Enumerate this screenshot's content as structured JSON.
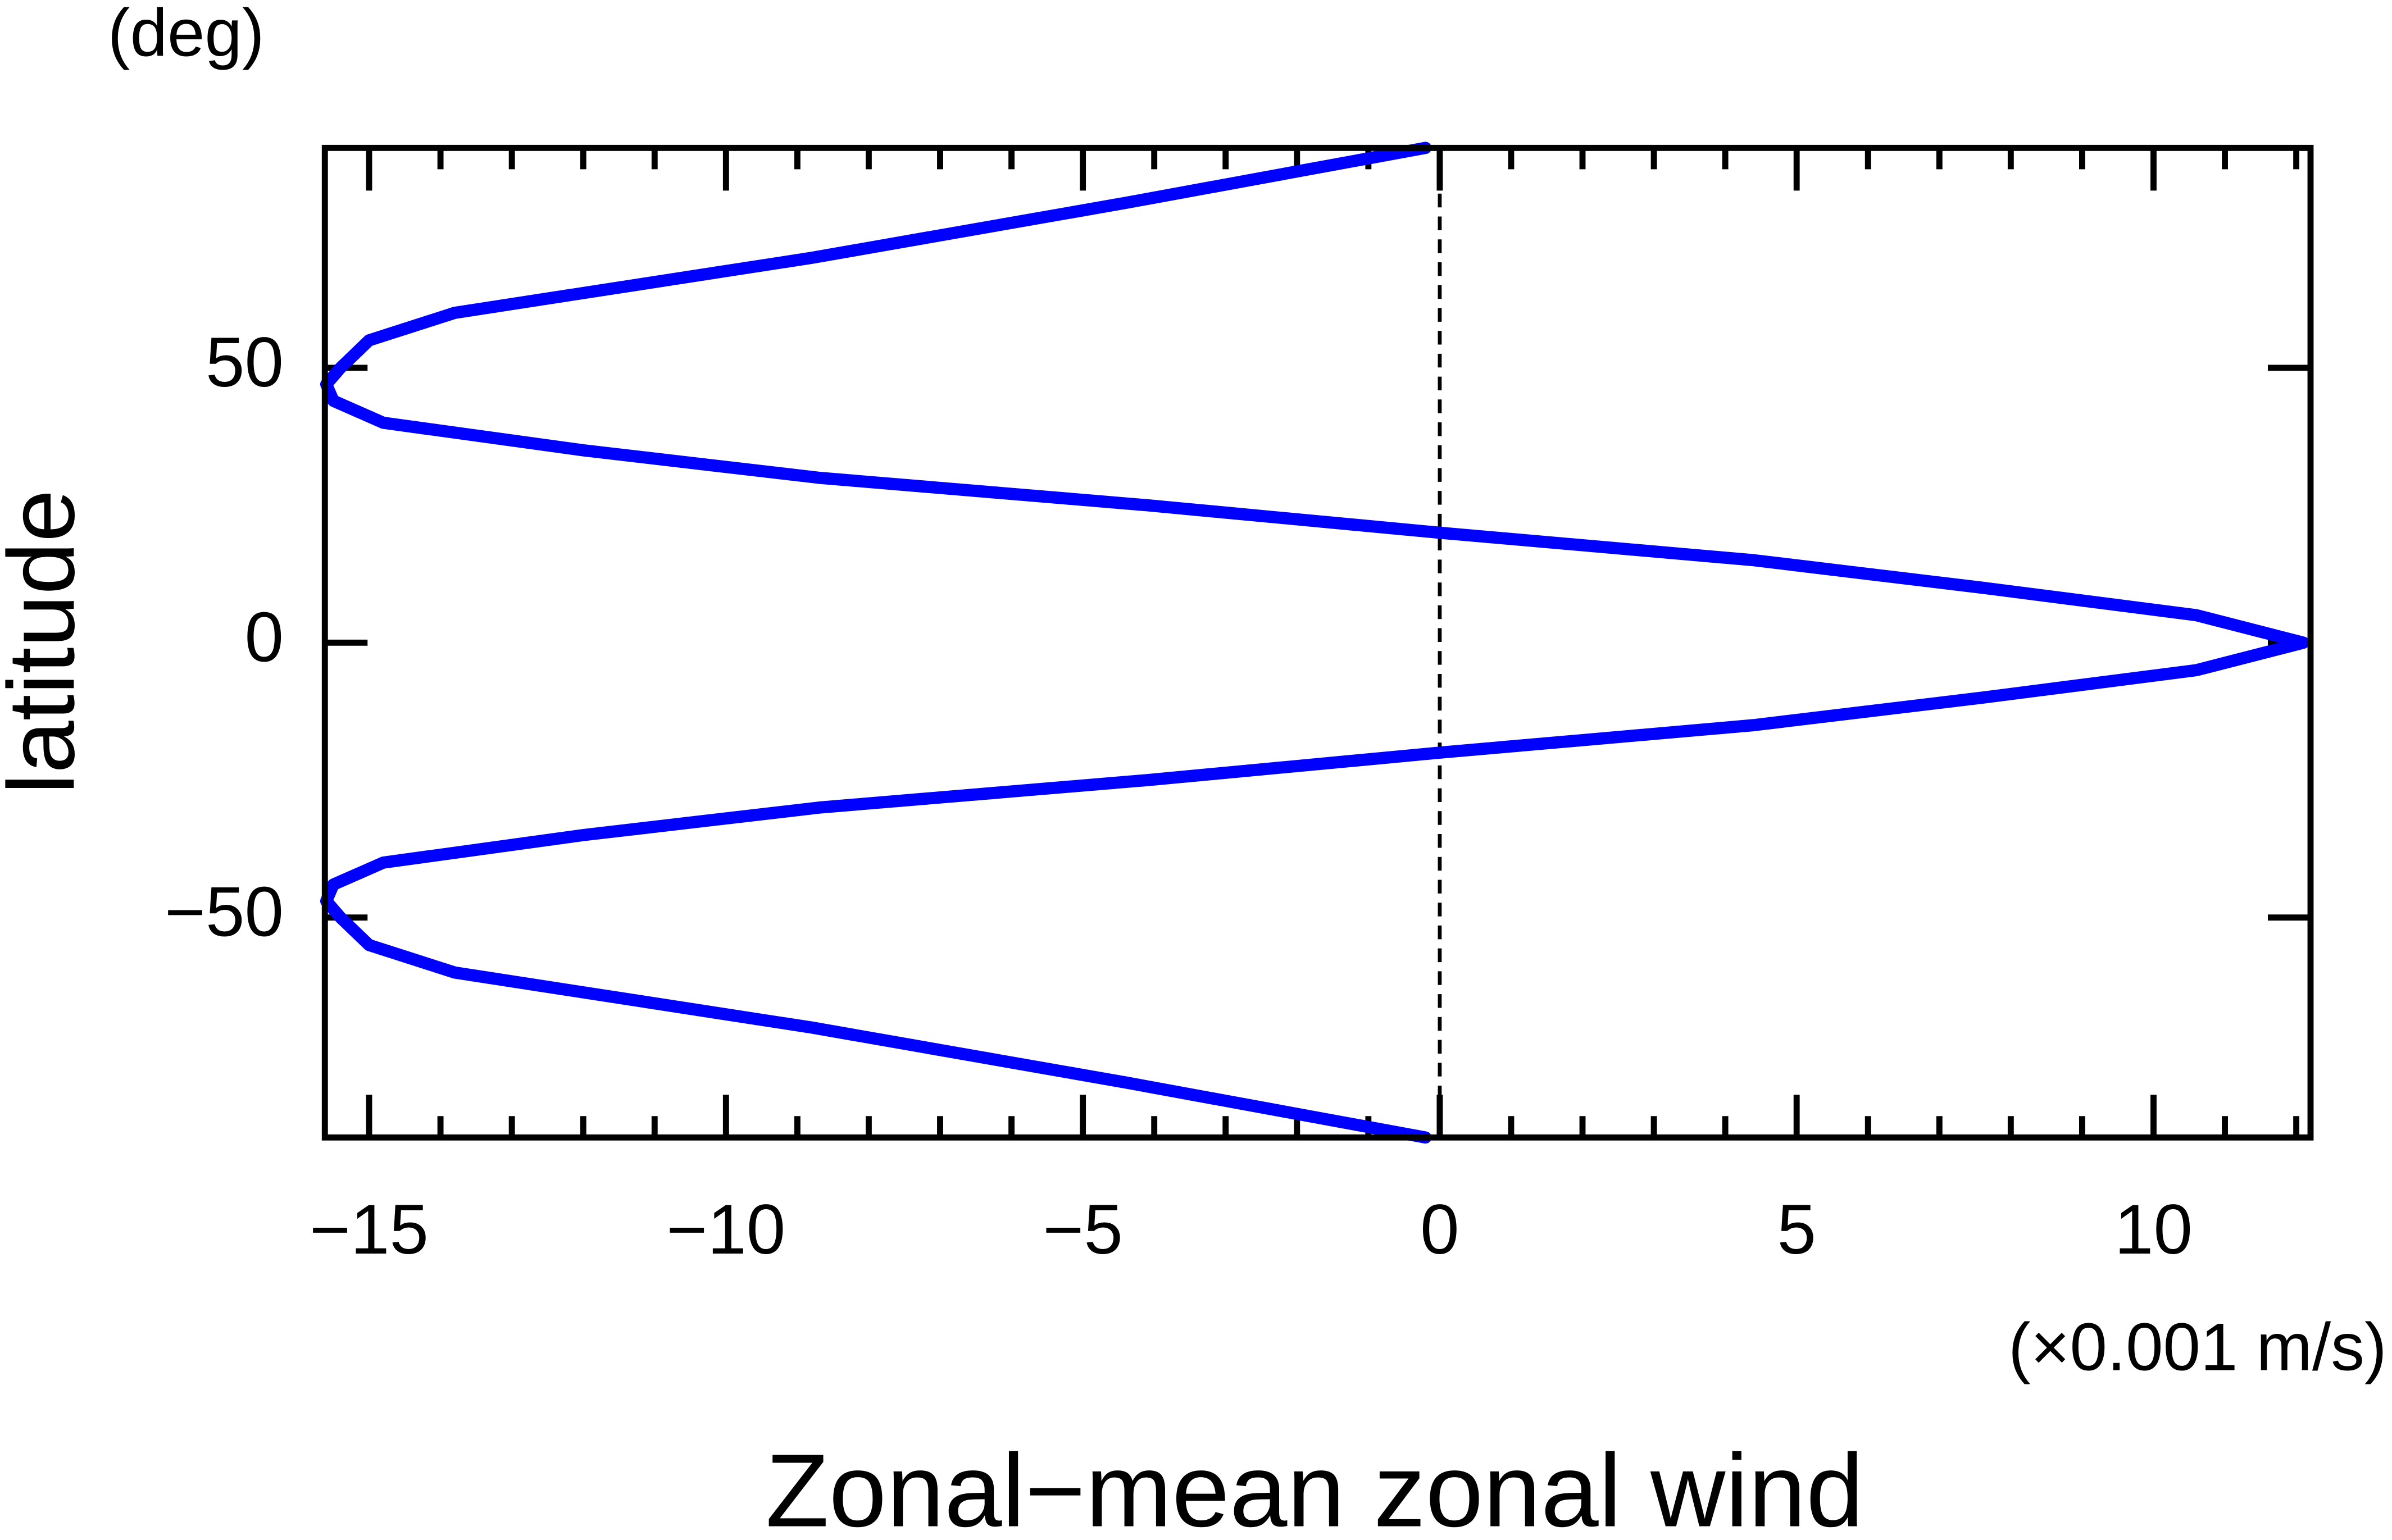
{
  "chart_data": {
    "type": "line",
    "y_unit": "(deg)",
    "y_label": "latitude",
    "x_unit": "(×0.001 m/s)",
    "x_label": "Zonal−mean zonal wind",
    "xlim": [
      -15.62,
      12.2
    ],
    "ylim": [
      -90,
      90
    ],
    "xticks": [
      {
        "value": -15,
        "label": "−15"
      },
      {
        "value": -10,
        "label": "−10"
      },
      {
        "value": -5,
        "label": "−5"
      },
      0,
      5,
      10
    ],
    "xminorticks": [
      -14,
      -13,
      -12,
      -11,
      -9,
      -8,
      -7,
      -6,
      -4,
      -3,
      -2,
      -1,
      1,
      2,
      3,
      4,
      6,
      7,
      8,
      9,
      11,
      12
    ],
    "yticks": [
      {
        "value": -50,
        "label": "−50"
      },
      0,
      50
    ],
    "zero_line": true,
    "y": [
      90,
      80,
      70,
      60,
      55,
      50,
      47,
      44,
      40,
      35,
      30,
      25,
      20,
      15,
      10,
      5,
      0,
      -5,
      -10,
      -15,
      -20,
      -25,
      -30,
      -35,
      -40,
      -44,
      -47,
      -50,
      -55,
      -60,
      -70,
      -80,
      -90
    ],
    "series": [
      {
        "color": "#0000ff",
        "values": [
          -0.2,
          -4.4,
          -8.8,
          -13.8,
          -15.0,
          -15.4,
          -15.6,
          -15.5,
          -14.8,
          -12.0,
          -8.7,
          -4.1,
          0,
          4.4,
          7.6,
          10.6,
          12.1,
          10.6,
          7.6,
          4.4,
          0,
          -4.1,
          -8.7,
          -12.0,
          -14.8,
          -15.5,
          -15.6,
          -15.4,
          -15.0,
          -13.8,
          -8.8,
          -4.4,
          -0.2
        ]
      }
    ]
  }
}
